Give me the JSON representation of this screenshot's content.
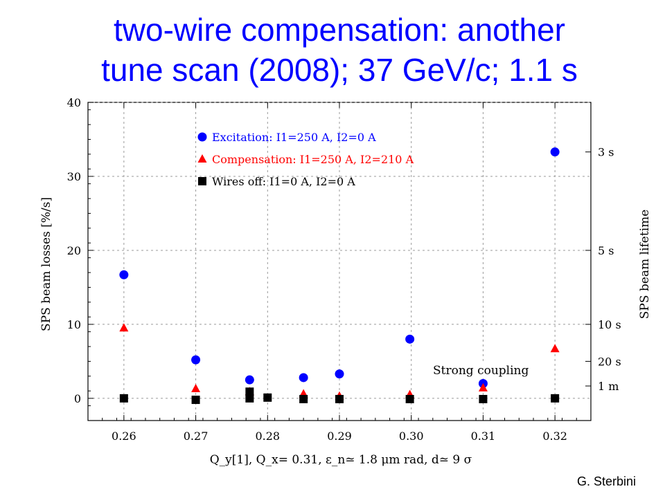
{
  "slide": {
    "title_line1": "two-wire compensation: another",
    "title_line2": "tune scan (2008); 37 GeV/c; 1.1 s",
    "credit": "G. Sterbini"
  },
  "chart_data": {
    "type": "scatter",
    "title": "",
    "xlabel": "Q_y[1], Q_x= 0.31, ε_n≃ 1.8 μm rad, d≃ 9 σ",
    "ylabel": "SPS beam losses [%/s]",
    "y2label": "SPS beam lifetime",
    "xlim": [
      0.255,
      0.325
    ],
    "ylim": [
      -3,
      40
    ],
    "x_ticks": [
      0.26,
      0.27,
      0.28,
      0.29,
      0.3,
      0.31,
      0.32
    ],
    "x_tick_labels": [
      "0.26",
      "0.27",
      "0.28",
      "0.29",
      "0.30",
      "0.31",
      "0.32"
    ],
    "y_ticks": [
      0,
      10,
      20,
      30,
      40
    ],
    "y_tick_labels": [
      "0",
      "10",
      "20",
      "30",
      "40"
    ],
    "y2_ticks": [
      {
        "value": 33.3,
        "label": "3 s"
      },
      {
        "value": 20,
        "label": "5 s"
      },
      {
        "value": 10,
        "label": "10 s"
      },
      {
        "value": 5,
        "label": "20 s"
      },
      {
        "value": 1.67,
        "label": "1 m"
      }
    ],
    "grid": true,
    "legend_position": "top-left",
    "annotation": "Strong coupling",
    "series": [
      {
        "name": "Excitation: I1=250 A, I2=0 A",
        "color": "#0000ff",
        "marker": "circle",
        "points": [
          [
            0.26,
            16.7
          ],
          [
            0.27,
            5.2
          ],
          [
            0.2775,
            2.5
          ],
          [
            0.285,
            2.8
          ],
          [
            0.29,
            3.3
          ],
          [
            0.2998,
            8.0
          ],
          [
            0.31,
            2.0
          ],
          [
            0.32,
            33.3
          ]
        ]
      },
      {
        "name": "Compensation: I1=250 A, I2=210 A",
        "color": "#ff0000",
        "marker": "triangle",
        "points": [
          [
            0.26,
            9.5
          ],
          [
            0.27,
            1.3
          ],
          [
            0.2775,
            0.9
          ],
          [
            0.285,
            0.6
          ],
          [
            0.29,
            0.3
          ],
          [
            0.2998,
            0.5
          ],
          [
            0.31,
            1.4
          ],
          [
            0.32,
            6.7
          ]
        ]
      },
      {
        "name": "Wires off: I1=0 A, I2=0 A",
        "color": "#000000",
        "marker": "square",
        "points": [
          [
            0.26,
            0.0
          ],
          [
            0.27,
            -0.2
          ],
          [
            0.2775,
            0.0
          ],
          [
            0.2775,
            0.9
          ],
          [
            0.28,
            0.1
          ],
          [
            0.285,
            -0.1
          ],
          [
            0.29,
            -0.1
          ],
          [
            0.2998,
            -0.1
          ],
          [
            0.31,
            -0.1
          ],
          [
            0.32,
            0.0
          ]
        ]
      }
    ]
  }
}
